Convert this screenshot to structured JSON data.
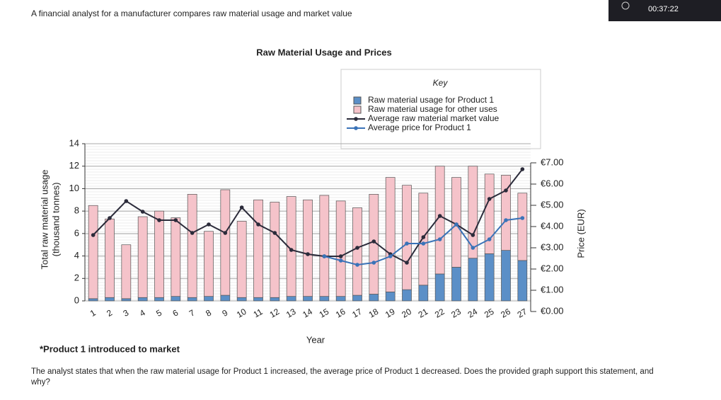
{
  "header": {
    "time": "00:37:22",
    "intro": "A financial analyst for a manufacturer compares raw material usage and market value"
  },
  "chart_data": {
    "type": "bar",
    "title": "Raw Material Usage and Prices",
    "legend_title": "Key",
    "legend_position": "upper right",
    "x_label": "Year",
    "y_label": [
      "Total raw material usage",
      "(thousand tonnes)"
    ],
    "y2_label": "Price (EUR)",
    "footnote": "*Product 1 introduced to market",
    "categories": [
      "1",
      "2",
      "3",
      "4",
      "5",
      "6",
      "7",
      "8",
      "9",
      "10",
      "11",
      "12",
      "13",
      "14",
      "15",
      "16",
      "17",
      "18",
      "19",
      "20",
      "21",
      "22",
      "23",
      "24",
      "25",
      "26",
      "27"
    ],
    "ylim": [
      0,
      14
    ],
    "yticks": [
      0,
      2,
      4,
      6,
      8,
      10,
      12,
      14
    ],
    "y2lim": [
      0,
      7
    ],
    "y2ticks": [
      {
        "value": 0,
        "label": "€0.00"
      },
      {
        "value": 1,
        "label": "€1.00"
      },
      {
        "value": 2,
        "label": "€2.00"
      },
      {
        "value": 3,
        "label": "€3.00"
      },
      {
        "value": 4,
        "label": "€4.00"
      },
      {
        "value": 5,
        "label": "€5.00"
      },
      {
        "value": 6,
        "label": "€6.00"
      },
      {
        "value": 7,
        "label": "€7.00"
      }
    ],
    "grid": true,
    "series": [
      {
        "name": "Raw material usage for Product 1",
        "type": "bar",
        "color": "#5b8fc7",
        "values": [
          0.2,
          0.3,
          0.2,
          0.3,
          0.3,
          0.4,
          0.3,
          0.4,
          0.5,
          0.3,
          0.3,
          0.3,
          0.4,
          0.4,
          0.4,
          0.4,
          0.5,
          0.6,
          0.8,
          1.0,
          1.4,
          2.4,
          3.0,
          3.8,
          4.2,
          4.5,
          3.6
        ]
      },
      {
        "name": "Raw material usage for other uses",
        "type": "bar",
        "color": "#f5c3ca",
        "values": [
          8.3,
          7.0,
          4.8,
          7.2,
          7.7,
          7.0,
          9.2,
          5.8,
          9.4,
          6.8,
          8.7,
          8.5,
          8.9,
          8.6,
          9.0,
          8.5,
          7.8,
          8.9,
          10.2,
          9.3,
          8.2,
          9.6,
          8.0,
          8.2,
          7.1,
          6.7,
          6.0
        ]
      },
      {
        "name": "Average raw material market value",
        "type": "line",
        "axis": "y2",
        "color": "#2b2b3a",
        "values": [
          3.6,
          4.4,
          5.2,
          4.7,
          4.3,
          4.3,
          3.7,
          4.1,
          3.7,
          4.9,
          4.1,
          3.7,
          2.9,
          2.7,
          2.6,
          2.6,
          3.0,
          3.3,
          2.7,
          2.3,
          3.5,
          4.5,
          4.1,
          3.6,
          5.3,
          5.7,
          6.7
        ]
      },
      {
        "name": "Average price for Product 1",
        "type": "line",
        "axis": "y2",
        "color": "#3a73b8",
        "values": [
          null,
          null,
          null,
          null,
          null,
          null,
          null,
          null,
          null,
          null,
          null,
          null,
          null,
          null,
          2.6,
          2.4,
          2.2,
          2.3,
          2.6,
          3.2,
          3.2,
          3.4,
          4.1,
          3.0,
          3.4,
          4.3,
          4.4
        ]
      }
    ]
  },
  "question": "The analyst states that when the raw material usage for Product 1 increased, the average price of Product 1 decreased. Does the provided graph support this statement, and why?"
}
